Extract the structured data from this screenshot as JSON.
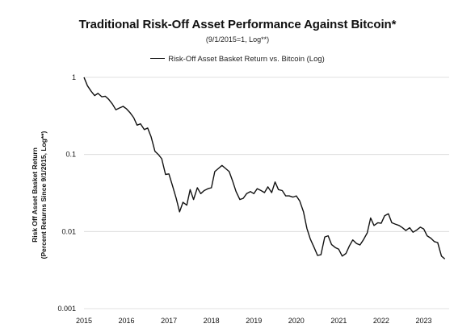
{
  "chart_data": {
    "type": "line",
    "title": "Traditional Risk-Off Asset Performance Against Bitcoin*",
    "subtitle": "(9/1/2015=1, Log**)",
    "ylabel_line1": "Risk Off Asset Basket Return",
    "ylabel_line2": "(Percent Returns Since 9/1/2015, Log**)",
    "y_scale": "log",
    "ylim": [
      0.001,
      1
    ],
    "y_ticks": [
      "1",
      "0.1",
      "0.01",
      "0.001"
    ],
    "y_tick_values": [
      1,
      0.1,
      0.01,
      0.001
    ],
    "xlim": [
      2015,
      2023.6
    ],
    "x_ticks": [
      "2015",
      "2016",
      "2017",
      "2018",
      "2019",
      "2020",
      "2021",
      "2022",
      "2023"
    ],
    "x_tick_values": [
      2015,
      2016,
      2017,
      2018,
      2019,
      2020,
      2021,
      2022,
      2023
    ],
    "grid": "horizontal",
    "legend": "top-center",
    "line_color": "#111111",
    "series": [
      {
        "name": "Risk-Off Asset Basket Return vs. Bitcoin (Log)",
        "x": [
          2015.0,
          2015.08,
          2015.17,
          2015.25,
          2015.33,
          2015.42,
          2015.5,
          2015.58,
          2015.67,
          2015.75,
          2015.83,
          2015.92,
          2016.0,
          2016.08,
          2016.17,
          2016.25,
          2016.33,
          2016.42,
          2016.5,
          2016.58,
          2016.67,
          2016.75,
          2016.83,
          2016.92,
          2017.0,
          2017.08,
          2017.17,
          2017.25,
          2017.33,
          2017.42,
          2017.5,
          2017.58,
          2017.67,
          2017.75,
          2017.83,
          2017.92,
          2018.0,
          2018.08,
          2018.17,
          2018.25,
          2018.33,
          2018.42,
          2018.5,
          2018.58,
          2018.67,
          2018.75,
          2018.83,
          2018.92,
          2019.0,
          2019.08,
          2019.17,
          2019.25,
          2019.33,
          2019.42,
          2019.5,
          2019.58,
          2019.67,
          2019.75,
          2019.83,
          2019.92,
          2020.0,
          2020.08,
          2020.17,
          2020.25,
          2020.33,
          2020.42,
          2020.5,
          2020.58,
          2020.67,
          2020.75,
          2020.83,
          2020.92,
          2021.0,
          2021.08,
          2021.17,
          2021.25,
          2021.33,
          2021.42,
          2021.5,
          2021.58,
          2021.67,
          2021.75,
          2021.83,
          2021.92,
          2022.0,
          2022.08,
          2022.17,
          2022.25,
          2022.33,
          2022.42,
          2022.5,
          2022.58,
          2022.67,
          2022.75,
          2022.83,
          2022.92,
          2023.0,
          2023.08,
          2023.17,
          2023.25,
          2023.33,
          2023.42,
          2023.5
        ],
        "values": [
          1.0,
          0.78,
          0.66,
          0.58,
          0.62,
          0.56,
          0.57,
          0.52,
          0.45,
          0.38,
          0.4,
          0.42,
          0.39,
          0.35,
          0.3,
          0.24,
          0.25,
          0.21,
          0.22,
          0.17,
          0.11,
          0.1,
          0.088,
          0.055,
          0.056,
          0.04,
          0.027,
          0.018,
          0.024,
          0.022,
          0.035,
          0.026,
          0.037,
          0.031,
          0.034,
          0.036,
          0.037,
          0.06,
          0.066,
          0.072,
          0.066,
          0.06,
          0.045,
          0.033,
          0.026,
          0.027,
          0.031,
          0.033,
          0.031,
          0.036,
          0.034,
          0.032,
          0.038,
          0.032,
          0.044,
          0.035,
          0.034,
          0.029,
          0.029,
          0.028,
          0.029,
          0.025,
          0.018,
          0.011,
          0.008,
          0.0062,
          0.0049,
          0.005,
          0.0085,
          0.0088,
          0.0068,
          0.0062,
          0.0059,
          0.0048,
          0.0052,
          0.0065,
          0.0078,
          0.007,
          0.0067,
          0.0078,
          0.0096,
          0.015,
          0.012,
          0.013,
          0.0128,
          0.016,
          0.017,
          0.013,
          0.0125,
          0.012,
          0.0112,
          0.0103,
          0.0112,
          0.0098,
          0.0104,
          0.0114,
          0.0108,
          0.0088,
          0.0082,
          0.0074,
          0.0072,
          0.0048,
          0.0044
        ]
      }
    ]
  }
}
